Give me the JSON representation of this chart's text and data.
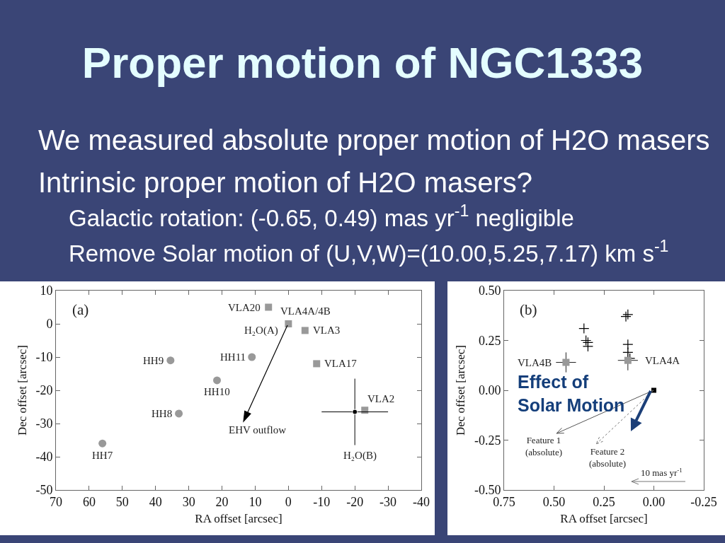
{
  "chart_data": [
    {
      "type": "other",
      "title": "Proper motion of NGC1333",
      "annotations": [
        "We measured absolute proper motion of H2O masers",
        "Intrinsic proper motion of H2O masers?",
        "Galactic rotation: (-0.65, 0.49) mas yr$^{-1}$ negligible",
        "Remove Solar motion of (U,V,W)=(10.00,5.25,7.17) km s$^{-1}$"
      ]
    },
    {
      "type": "scatter",
      "xlabel": "RA offset [arcsec]",
      "ylabel": "Dec offset [arcsec]",
      "xlim": [
        70,
        -40
      ],
      "xticks": [
        70,
        60,
        50,
        40,
        30,
        20,
        10,
        0,
        -10,
        -20,
        -30,
        -40
      ],
      "ylim": [
        -50,
        10
      ],
      "yticks": [
        -50,
        -40,
        -30,
        -20,
        -10,
        0,
        10
      ],
      "series": [
        {
          "color": "#999999",
          "marker": "circle",
          "x": [
            56,
            33,
            35.5,
            21.5,
            11
          ],
          "values": [
            -36,
            -27,
            -11,
            -17,
            -10
          ]
        },
        {
          "color": "#999999",
          "marker": "square",
          "x": [
            6,
            0,
            -5,
            -8.5,
            -23
          ],
          "values": [
            5,
            0,
            -2,
            -12,
            -26
          ]
        },
        {
          "color": "#000000",
          "marker": "none",
          "x": [
            -20
          ],
          "values": [
            -26.5
          ],
          "errors": [
            10
          ],
          "xerrors": [
            10
          ]
        }
      ],
      "annotations": [
        "(a)",
        {
          "text": "HH7",
          "x": 56,
          "y": -36
        },
        {
          "text": "HH8",
          "x": 33,
          "y": -27
        },
        {
          "text": "HH9",
          "x": 35.5,
          "y": -11
        },
        {
          "text": "HH10",
          "x": 21.5,
          "y": -17
        },
        {
          "text": "HH11",
          "x": 11,
          "y": -10
        },
        {
          "text": "VLA20",
          "x": 6,
          "y": 5
        },
        {
          "text": "VLA4A/4B",
          "x": 0,
          "y": 0
        },
        {
          "text": "H₂O(A)",
          "x": 0,
          "y": 0
        },
        {
          "text": "VLA3",
          "x": -5,
          "y": -2
        },
        {
          "text": "VLA17",
          "x": -8.5,
          "y": -12
        },
        {
          "text": "VLA2",
          "x": -23,
          "y": -26
        },
        {
          "text": "H₂O(B)",
          "x": -20,
          "y": -36.5
        },
        "EHV outflow"
      ]
    },
    {
      "type": "scatter",
      "xlabel": "RA offset [arcsec]",
      "ylabel": "Dec offset [arcsec]",
      "xlim": [
        0.75,
        -0.25
      ],
      "xticks": [
        {
          "value": 0.75,
          "label": "0.75"
        },
        {
          "value": 0.5,
          "label": "0.50"
        },
        {
          "value": 0.25,
          "label": "0.25"
        },
        {
          "value": 0,
          "label": "0.00"
        },
        {
          "value": -0.25,
          "label": "-0.25"
        }
      ],
      "ylim": [
        -0.5,
        0.5
      ],
      "yticks": [
        {
          "value": -0.5,
          "label": "-0.50"
        },
        {
          "value": -0.25,
          "label": "-0.25"
        },
        {
          "value": 0,
          "label": "0.00"
        },
        {
          "value": 0.25,
          "label": "0.25"
        },
        {
          "value": 0.5,
          "label": "0.50"
        }
      ],
      "series": [
        {
          "color": "#000000",
          "marker": "cross",
          "x": [
            0.14,
            0.13,
            0.35,
            0.34,
            0.33,
            0.33,
            0.13,
            0.13,
            0.12
          ],
          "values": [
            0.37,
            0.38,
            0.31,
            0.25,
            0.24,
            0.22,
            0.23,
            0.19,
            0.16
          ]
        },
        {
          "color": "#999999",
          "marker": "square",
          "x": [
            0.44,
            0.13
          ],
          "values": [
            0.14,
            0.15
          ],
          "xerrors": [
            0.05,
            0.05
          ],
          "errors": [
            0.05,
            0.05
          ]
        },
        {
          "color": "#000000",
          "marker": "square",
          "x": [
            0
          ],
          "values": [
            0
          ]
        }
      ],
      "annotations": [
        "(b)",
        "Effect of\nSolar Motion",
        {
          "text": "VLA4B",
          "x": 0.44,
          "y": 0.14
        },
        {
          "text": "VLA4A",
          "x": 0.13,
          "y": 0.15
        },
        "Feature 1\n(absolute)",
        {
          "text": "Feature 2\n(absolute)",
          "x": 0,
          "y": 0
        },
        "10 mas yr$^{-1}$"
      ]
    }
  ]
}
